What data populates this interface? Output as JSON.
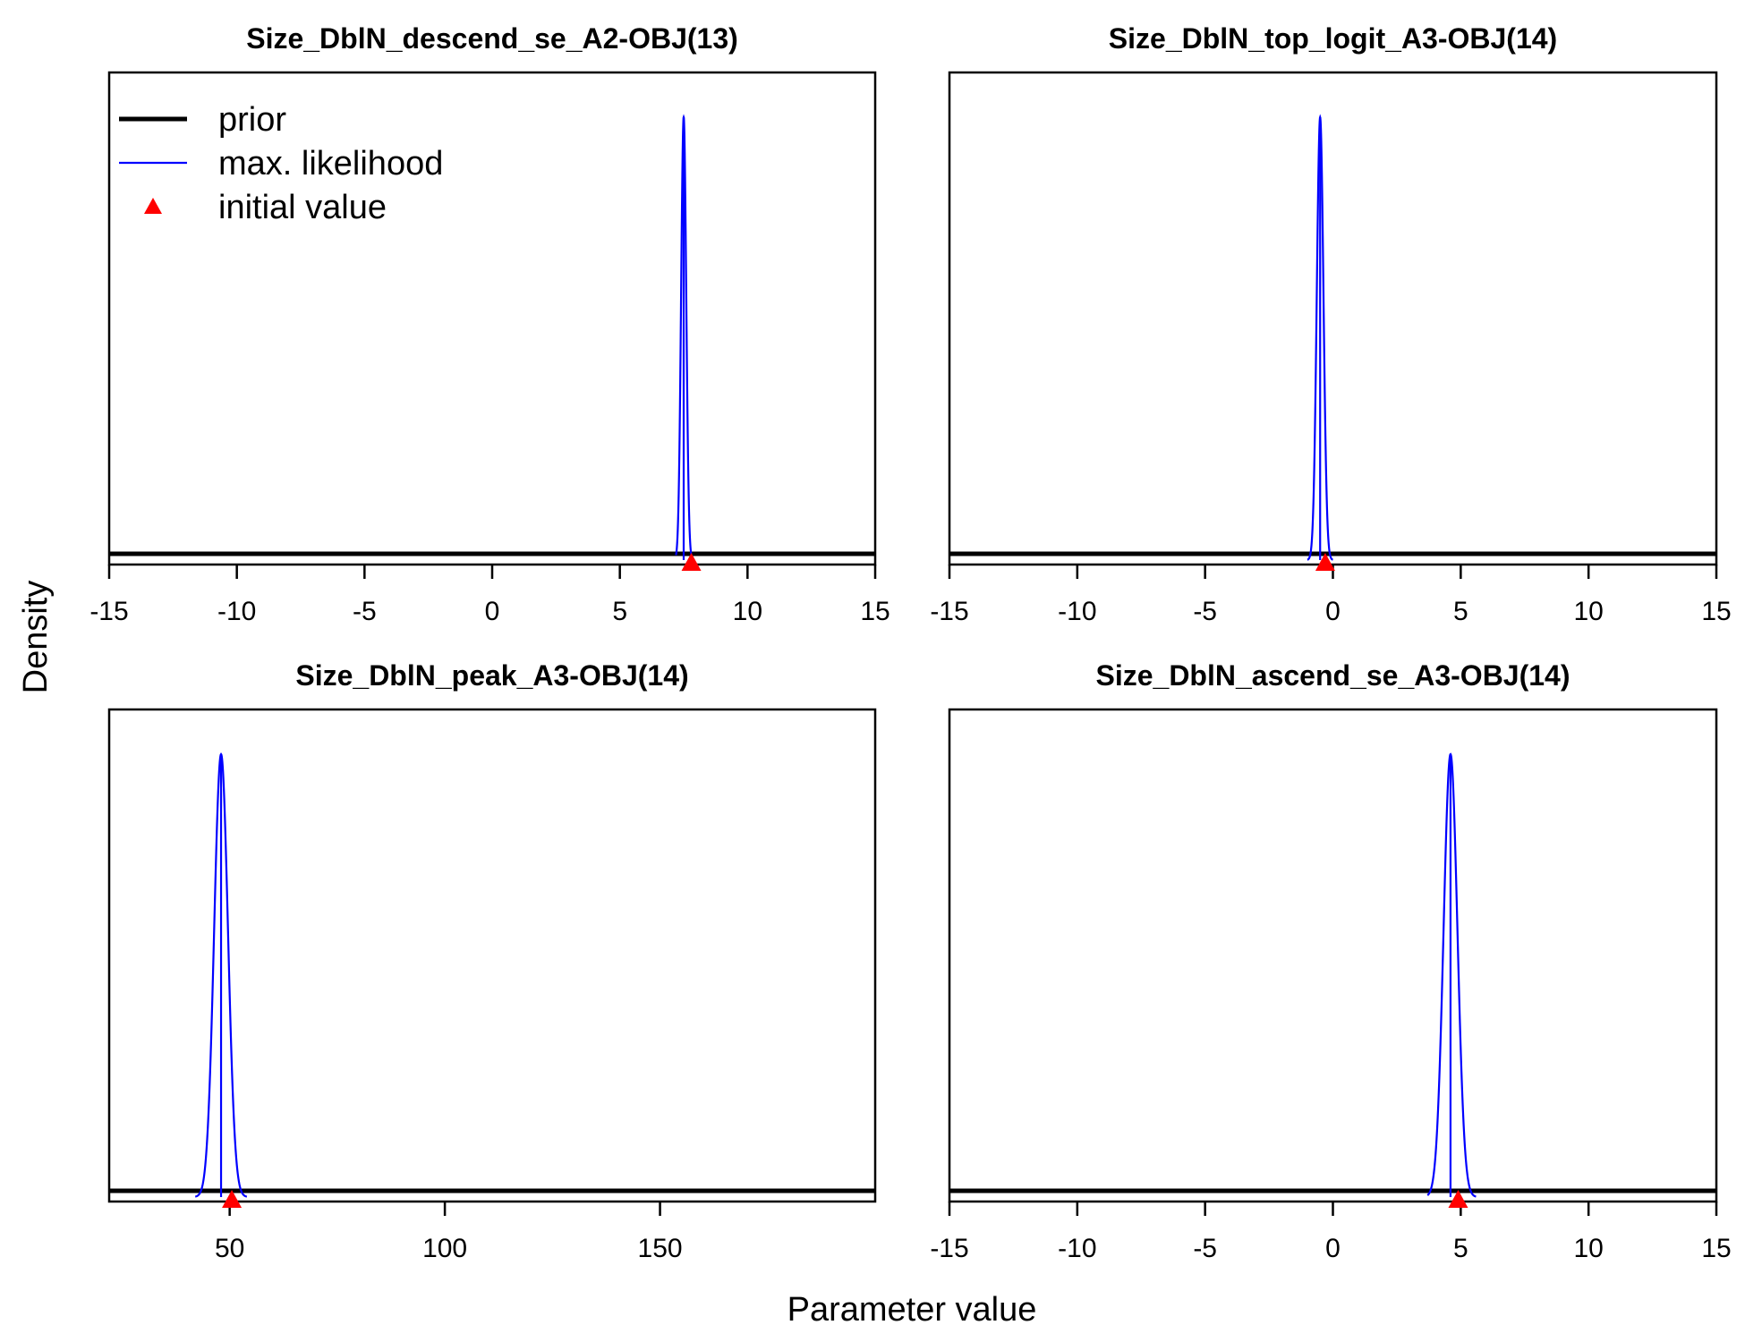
{
  "figure": {
    "ylabel": "Density",
    "xlabel": "Parameter value",
    "legend": {
      "placement": "top-left",
      "entries": [
        {
          "label": "prior",
          "color": "#000000",
          "style": "thick-line"
        },
        {
          "label": "max. likelihood",
          "color": "#0000ff",
          "style": "thin-line"
        },
        {
          "label": "initial value",
          "color": "#ff0000",
          "style": "triangle"
        }
      ]
    }
  },
  "chart_data": [
    {
      "type": "line",
      "title": "Size_DblN_descend_se_A2-OBJ(13)",
      "xlim": [
        -15,
        15
      ],
      "xticks": [
        -15,
        -10,
        -5,
        0,
        5,
        10,
        15
      ],
      "prior": {
        "type": "flat",
        "level": 0.01
      },
      "max_likelihood": {
        "mean": 7.5,
        "sd": 0.1,
        "lower": 7.2,
        "upper": 7.8
      },
      "initial_value": 7.8
    },
    {
      "type": "line",
      "title": "Size_DblN_top_logit_A3-OBJ(14)",
      "xlim": [
        -15,
        15
      ],
      "xticks": [
        -15,
        -10,
        -5,
        0,
        5,
        10,
        15
      ],
      "prior": {
        "type": "flat",
        "level": 0.01
      },
      "max_likelihood": {
        "mean": -0.5,
        "sd": 0.13,
        "lower": -1.0,
        "upper": 0.0
      },
      "initial_value": -0.3
    },
    {
      "type": "line",
      "title": "Size_DblN_peak_A3-OBJ(14)",
      "xlim": [
        22,
        200
      ],
      "xticks": [
        50,
        100,
        150
      ],
      "prior": {
        "type": "flat",
        "level": 0.01
      },
      "max_likelihood": {
        "mean": 48,
        "sd": 1.6,
        "lower": 42,
        "upper": 54
      },
      "initial_value": 50.5
    },
    {
      "type": "line",
      "title": "Size_DblN_ascend_se_A3-OBJ(14)",
      "xlim": [
        -15,
        15
      ],
      "xticks": [
        -15,
        -10,
        -5,
        0,
        5,
        10,
        15
      ],
      "prior": {
        "type": "flat",
        "level": 0.01
      },
      "max_likelihood": {
        "mean": 4.6,
        "sd": 0.27,
        "lower": 3.7,
        "upper": 5.6
      },
      "initial_value": 4.9
    }
  ]
}
